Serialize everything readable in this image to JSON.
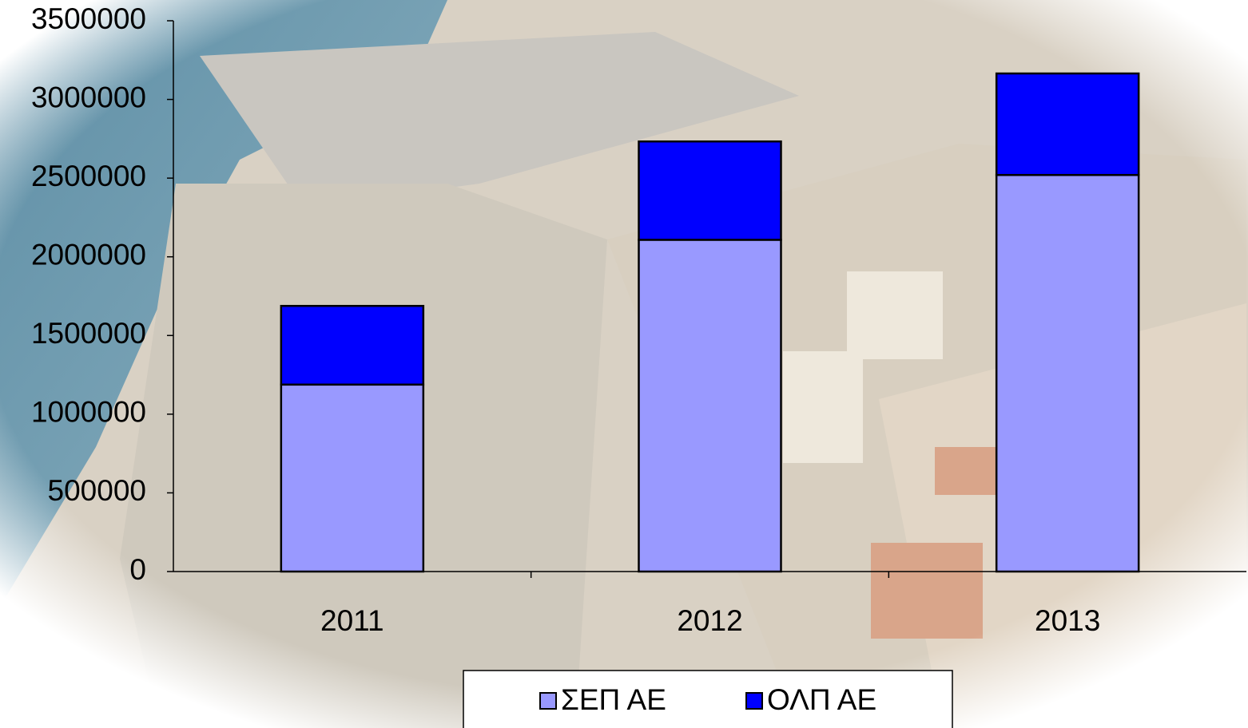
{
  "chart_data": {
    "type": "stacked-bar",
    "categories": [
      "2011",
      "2012",
      "2013"
    ],
    "series": [
      {
        "name": "ΣΕΠ ΑΕ",
        "color": "#9999ff",
        "values": [
          1188000,
          2108000,
          2520000
        ]
      },
      {
        "name": "ΟΛΠ ΑΕ",
        "color": "#0000ff",
        "values": [
          500000,
          625000,
          645000
        ]
      }
    ],
    "ylim": [
      0,
      3500000
    ],
    "yticks": [
      0,
      500000,
      1000000,
      1500000,
      2000000,
      2500000,
      3000000,
      3500000
    ],
    "legend": "bottom"
  }
}
